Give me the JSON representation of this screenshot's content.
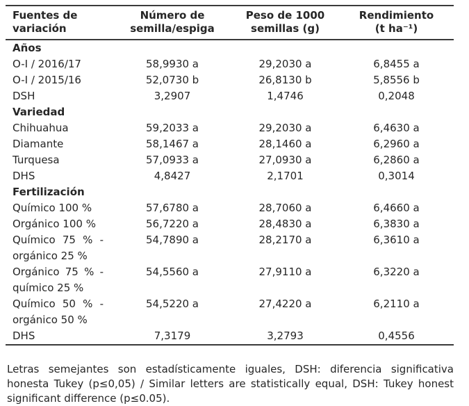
{
  "table": {
    "headers": [
      {
        "line1": "Fuentes de",
        "line2": "variación"
      },
      {
        "line1": "Número de",
        "line2": "semilla/espiga"
      },
      {
        "line1": "Peso de 1000",
        "line2": "semillas (g)"
      },
      {
        "line1": "Rendimiento",
        "line2": "(t ha⁻¹)"
      }
    ],
    "rows": [
      {
        "type": "section",
        "label": "Años"
      },
      {
        "type": "data",
        "label": "O-I / 2016/17",
        "c1": "58,9930 a",
        "c2": "29,2030 a",
        "c3": "6,8455 a"
      },
      {
        "type": "data",
        "label": "O-I / 2015/16",
        "c1": "52,0730 b",
        "c2": "26,8130 b",
        "c3": "5,8556 b"
      },
      {
        "type": "data",
        "label": "DSH",
        "c1": "3,2907",
        "c2": "1,4746",
        "c3": "0,2048"
      },
      {
        "type": "section",
        "label": "Variedad"
      },
      {
        "type": "data",
        "label": "Chihuahua",
        "c1": "59,2033 a",
        "c2": "29,2030 a",
        "c3": "6,4630 a"
      },
      {
        "type": "data",
        "label": "Diamante",
        "c1": "58,1467 a",
        "c2": "28,1460 a",
        "c3": "6,2960 a"
      },
      {
        "type": "data",
        "label": "Turquesa",
        "c1": "57,0933 a",
        "c2": "27,0930 a",
        "c3": "6,2860 a"
      },
      {
        "type": "data",
        "label": "DHS",
        "c1": "4,8427",
        "c2": "2,1701",
        "c3": "0,3014"
      },
      {
        "type": "section",
        "label": "Fertilización"
      },
      {
        "type": "data",
        "label": "Químico 100 %",
        "c1": "57,6780 a",
        "c2": "28,7060 a",
        "c3": "6,4660 a"
      },
      {
        "type": "data",
        "label": "Orgánico 100 %",
        "c1": "56,7220 a",
        "c2": "28,4830 a",
        "c3": "6,3830 a"
      },
      {
        "type": "data",
        "label": "Químico 75 % - orgánico 25 %",
        "c1": "54,7890 a",
        "c2": "28,2170 a",
        "c3": "6,3610 a"
      },
      {
        "type": "data",
        "label": "Orgánico 75 % - químico 25 %",
        "c1": "54,5560 a",
        "c2": "27,9110 a",
        "c3": "6,3220 a"
      },
      {
        "type": "data",
        "label": "Químico 50 % - orgánico 50 %",
        "c1": "54,5220 a",
        "c2": "27,4220 a",
        "c3": "6,2110 a"
      },
      {
        "type": "data",
        "label": "DHS",
        "c1": "7,3179",
        "c2": "3,2793",
        "c3": "0,4556"
      }
    ]
  },
  "footnote": {
    "text": "Letras semejantes son estadísticamente iguales, DSH: diferencia significativa honesta Tukey (p≤0,05) / Similar letters are statistically equal, DSH: Tukey honest significant difference (p≤0.05)."
  },
  "colors": {
    "background": "#ffffff",
    "text": "#262626",
    "border": "#3a3a3a"
  }
}
